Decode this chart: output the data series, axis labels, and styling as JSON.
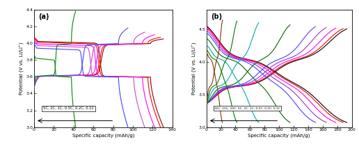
{
  "fig_width": 5.16,
  "fig_height": 2.27,
  "dpi": 100,
  "background_color": "#ffffff",
  "panel_a": {
    "label": "(a)",
    "xlim": [
      0,
      140
    ],
    "ylim": [
      3.0,
      4.4
    ],
    "xticks": [
      0,
      20,
      40,
      60,
      80,
      100,
      120,
      140
    ],
    "yticks": [
      3.0,
      3.2,
      3.4,
      3.6,
      3.8,
      4.0,
      4.2,
      4.4
    ],
    "xlabel": "Specific capacity (mAh/g)",
    "ylabel": "Potential (V vs. Li/Li⁺)",
    "legend_text": "5C, 2C, 1C, 0.5C, 0.2C, 0.1C",
    "curves": [
      {
        "label": "0.1C",
        "color": "#8B0000",
        "max_cap": 131,
        "charge_end": 4.05,
        "discharge_start": 4.02
      },
      {
        "label": "0.2C",
        "color": "#FF0000",
        "max_cap": 128,
        "charge_end": 4.07,
        "discharge_start": 4.01
      },
      {
        "label": "0.5C",
        "color": "#FF00FF",
        "max_cap": 122,
        "charge_end": 4.1,
        "discharge_start": 3.99
      },
      {
        "label": "1C",
        "color": "#CC44CC",
        "max_cap": 112,
        "charge_end": 4.13,
        "discharge_start": 3.97
      },
      {
        "label": "2C",
        "color": "#4444FF",
        "max_cap": 95,
        "charge_end": 4.18,
        "discharge_start": 3.94
      },
      {
        "label": "5C",
        "color": "#008800",
        "max_cap": 42,
        "charge_end": 4.38,
        "discharge_start": 3.82
      }
    ]
  },
  "panel_b": {
    "label": "(b)",
    "xlim": [
      0,
      200
    ],
    "ylim": [
      3.0,
      4.8
    ],
    "xticks": [
      0,
      20,
      40,
      60,
      80,
      100,
      120,
      140,
      160,
      180,
      200
    ],
    "yticks": [
      3.0,
      3.5,
      4.0,
      4.5
    ],
    "xlabel": "Specific capacity (mAh/g)",
    "ylabel": "Potential (V vs. Li/Li⁺)",
    "legend_text": "30C, 15C, 10C, 5C, 2C, 1C, 0.5C, 0.2C, 0.1C",
    "curves": [
      {
        "label": "0.1C",
        "color": "#000000",
        "max_cap": 193
      },
      {
        "label": "0.2C",
        "color": "#FF0000",
        "max_cap": 188
      },
      {
        "label": "0.5C",
        "color": "#FF00FF",
        "max_cap": 178
      },
      {
        "label": "1C",
        "color": "#9933CC",
        "max_cap": 165
      },
      {
        "label": "2C",
        "color": "#4444FF",
        "max_cap": 150
      },
      {
        "label": "5C",
        "color": "#006600",
        "max_cap": 115
      },
      {
        "label": "10C",
        "color": "#00AAAA",
        "max_cap": 72
      },
      {
        "label": "15C",
        "color": "#007700",
        "max_cap": 42
      },
      {
        "label": "30C",
        "color": "#883300",
        "max_cap": 22
      }
    ]
  }
}
